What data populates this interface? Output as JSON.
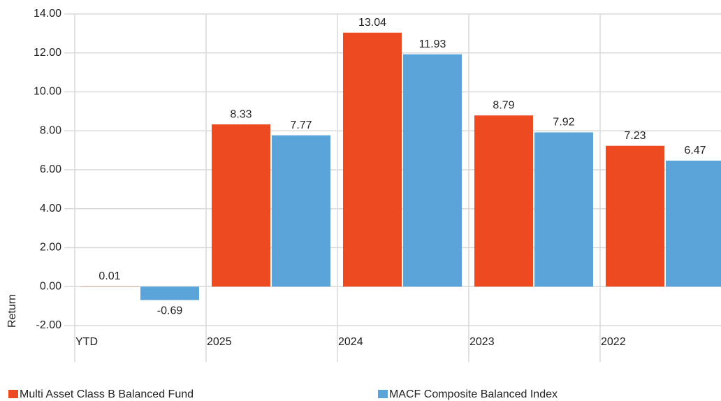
{
  "chart_data": {
    "type": "bar",
    "y_label": "Return",
    "categories": [
      "YTD",
      "2025",
      "2024",
      "2023",
      "2022"
    ],
    "series": [
      {
        "name": "Multi Asset Class B Balanced Fund",
        "color": "#ee4a22",
        "values": [
          0.01,
          8.33,
          13.04,
          8.79,
          7.23
        ]
      },
      {
        "name": "MACF Composite Balanced Index",
        "color": "#5ba4da",
        "values": [
          -0.69,
          7.77,
          11.93,
          7.92,
          6.47
        ]
      }
    ],
    "ylim": [
      -2,
      14
    ],
    "yticks": [
      {
        "value": -2,
        "label": "-2.00"
      },
      {
        "value": 0,
        "label": "0.00"
      },
      {
        "value": 2,
        "label": "2.00"
      },
      {
        "value": 4,
        "label": "4.00"
      },
      {
        "value": 6,
        "label": "6.00"
      },
      {
        "value": 8,
        "label": "8.00"
      },
      {
        "value": 10,
        "label": "10.00"
      },
      {
        "value": 12,
        "label": "12.00"
      },
      {
        "value": 14,
        "label": "14.00"
      }
    ],
    "grid": true
  }
}
